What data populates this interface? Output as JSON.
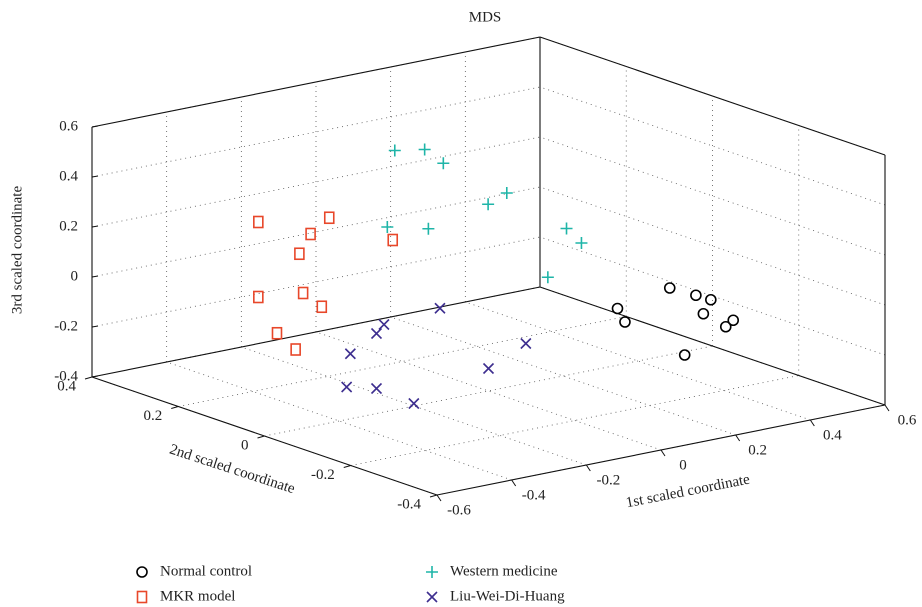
{
  "chart_data": {
    "type": "scatter3d",
    "title": "MDS",
    "xlabel": "1st scaled coordinate",
    "ylabel": "2nd scaled coordinate",
    "zlabel": "3rd scaled coordinate",
    "xlim": [
      -0.6,
      0.6
    ],
    "ylim": [
      -0.4,
      0.4
    ],
    "zlim": [
      -0.4,
      0.6
    ],
    "xticks": [
      -0.6,
      -0.4,
      -0.2,
      0,
      0.2,
      0.4,
      0.6
    ],
    "yticks": [
      -0.4,
      -0.2,
      0,
      0.2,
      0.4
    ],
    "zticks": [
      -0.4,
      -0.2,
      0,
      0.2,
      0.4,
      0.6
    ],
    "grid": true,
    "series": [
      {
        "name": "Normal control",
        "color": "#000000",
        "marker": "circle",
        "x": [
          0.23,
          0.25,
          0.37,
          0.44,
          0.48,
          0.46,
          0.54,
          0.52,
          0.41
        ],
        "y": [
          -0.1,
          -0.1,
          -0.1,
          -0.1,
          -0.1,
          -0.1,
          -0.1,
          -0.1,
          -0.1
        ],
        "z": [
          -0.08,
          -0.14,
          -0.04,
          -0.09,
          -0.12,
          -0.17,
          -0.22,
          -0.24,
          -0.32
        ]
      },
      {
        "name": "MKR model",
        "color": "#e8472a",
        "marker": "square",
        "x": [
          -0.27,
          -0.08,
          -0.13,
          -0.16,
          0.09,
          -0.27,
          -0.15,
          -0.1,
          -0.22,
          -0.17
        ],
        "y": [
          0.3,
          0.3,
          0.3,
          0.3,
          0.3,
          0.3,
          0.3,
          0.3,
          0.3,
          0.3
        ],
        "z": [
          0.18,
          0.14,
          0.09,
          0.02,
          0.0,
          -0.12,
          -0.14,
          -0.21,
          -0.28,
          -0.36
        ]
      },
      {
        "name": "Western medicine",
        "color": "#1fb5a8",
        "marker": "plus",
        "x": [
          -0.02,
          0.06,
          0.11,
          -0.04,
          0.07,
          0.23,
          0.28,
          0.44,
          0.48,
          0.39
        ],
        "y": [
          0.2,
          0.2,
          0.2,
          0.2,
          0.2,
          0.2,
          0.2,
          0.2,
          0.2,
          0.2
        ],
        "z": [
          0.45,
          0.43,
          0.36,
          0.15,
          0.11,
          0.16,
          0.19,
          0.0,
          -0.07,
          -0.18
        ]
      },
      {
        "name": "Liu-Wei-Di-Huang",
        "color": "#3d2e8f",
        "marker": "cross",
        "x": [
          -0.13,
          -0.28,
          -0.3,
          -0.37,
          0.1,
          0.0,
          -0.38,
          -0.3,
          -0.2
        ],
        "y": [
          0,
          0,
          0,
          0,
          0,
          0,
          0,
          0,
          0
        ],
        "z": [
          -0.03,
          -0.05,
          -0.08,
          -0.14,
          -0.24,
          -0.31,
          -0.27,
          -0.3,
          -0.39
        ]
      }
    ]
  }
}
